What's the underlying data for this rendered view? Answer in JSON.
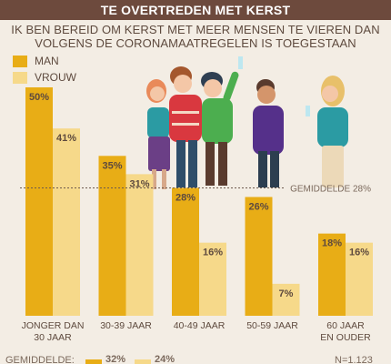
{
  "header": {
    "title": "TE OVERTREDEN MET KERST",
    "subtitle_line1": "IK BEN BEREID OM KERST MET MEER MENSEN TE VIEREN DAN",
    "subtitle_line2": "VOLGENS DE CORONAMAATREGELEN IS TOEGESTAAN"
  },
  "colors": {
    "man": "#e8ad16",
    "vrouw": "#f6d98a",
    "header_bg": "#6d4a3d",
    "text": "#5e4a3e",
    "background": "#f3ede4"
  },
  "illustration": "group of people toasting with drinks",
  "chart_data": {
    "type": "bar",
    "categories": [
      [
        "JONGER DAN",
        "30 JAAR"
      ],
      [
        "30-39 JAAR"
      ],
      [
        "40-49 JAAR"
      ],
      [
        "50-59 JAAR"
      ],
      [
        "60 JAAR",
        "EN OUDER"
      ]
    ],
    "series": [
      {
        "name": "MAN",
        "values": [
          50,
          35,
          28,
          26,
          18
        ],
        "labels": [
          "50%",
          "35%",
          "28%",
          "26%",
          "18%"
        ]
      },
      {
        "name": "VROUW",
        "values": [
          41,
          31,
          16,
          7,
          16
        ],
        "labels": [
          "41%",
          "31%",
          "16%",
          "7%",
          "16%"
        ]
      }
    ],
    "reference_line": {
      "value": 28,
      "label": "GEMIDDELDE 28%"
    },
    "ylim": [
      0,
      50
    ],
    "legend_position": "top-left",
    "grid": false
  },
  "footer": {
    "label": "GEMIDDELDE:",
    "man_value": "32%",
    "vrouw_value": "24%",
    "n": "N=1.123"
  }
}
